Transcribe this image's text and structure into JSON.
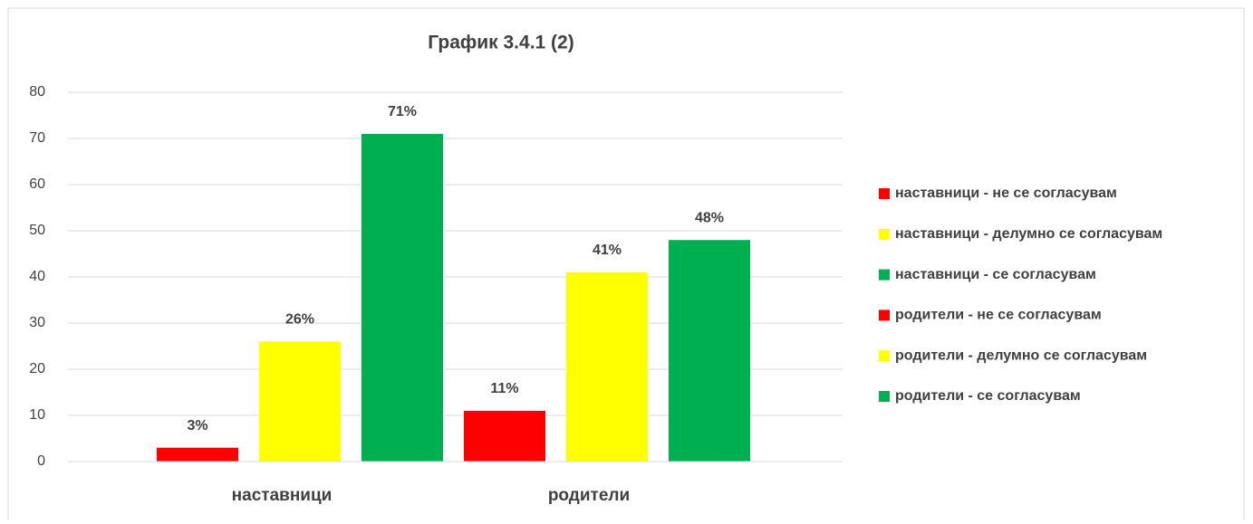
{
  "chart_data": {
    "type": "bar",
    "title": "График 3.4.1 (2)",
    "categories": [
      "наставници",
      "родители"
    ],
    "series": [
      {
        "name": "наставници - не се согласувам",
        "color": "#ff0000",
        "values": [
          3,
          null
        ],
        "value_labels": [
          "3%",
          null
        ]
      },
      {
        "name": "наставници - делумно се согласувам",
        "color": "#ffff00",
        "values": [
          26,
          null
        ],
        "value_labels": [
          "26%",
          null
        ]
      },
      {
        "name": "наставници - се согласувам",
        "color": "#00b050",
        "values": [
          71,
          null
        ],
        "value_labels": [
          "71%",
          null
        ]
      },
      {
        "name": "родители - не се согласувам",
        "color": "#ff0000",
        "values": [
          null,
          11
        ],
        "value_labels": [
          null,
          "11%"
        ]
      },
      {
        "name": "родители - делумно се согласувам",
        "color": "#ffff00",
        "values": [
          null,
          41
        ],
        "value_labels": [
          null,
          "41%"
        ]
      },
      {
        "name": "родители - се согласувам",
        "color": "#00b050",
        "values": [
          null,
          48
        ],
        "value_labels": [
          null,
          "48%"
        ]
      }
    ],
    "ylim": [
      0,
      80
    ],
    "yticks": [
      0,
      10,
      20,
      30,
      40,
      50,
      60,
      70,
      80
    ],
    "grid": true,
    "legend": "right"
  }
}
